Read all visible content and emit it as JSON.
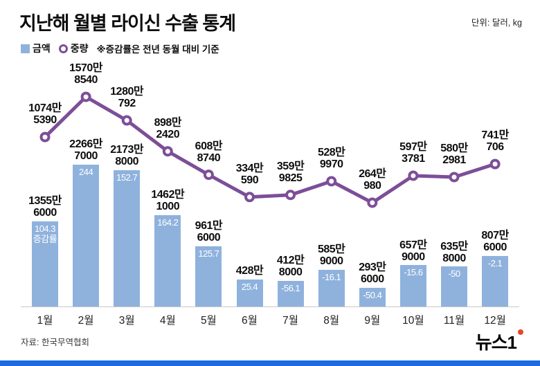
{
  "header": {
    "title": "지난해 월별 라이신 수출 통계",
    "unit_note": "단위: 달러, kg"
  },
  "legend": {
    "note": "※증감률은 전년 동월 대비 기준"
  },
  "footer": {
    "source": "자료: 한국무역협회",
    "logo": "뉴스1"
  },
  "colors": {
    "bar": "#8fb2dd",
    "line": "#7d4e98",
    "strip": "#1c6be2",
    "logo_dot": "#e8442e"
  },
  "chart_data": {
    "type": "combo",
    "title": "지난해 월별 라이신 수출 통계",
    "note": "※증감률은 전년 동월 대비 기준",
    "categories": [
      "1월",
      "2월",
      "3월",
      "4월",
      "5월",
      "6월",
      "7월",
      "8월",
      "9월",
      "10월",
      "11월",
      "12월"
    ],
    "legend_position": "top-left",
    "grid": false,
    "series": [
      {
        "name": "금액",
        "type": "bar",
        "values": [
          13556000,
          22667000,
          21738000,
          14621000,
          9616000,
          4280000,
          4128000,
          5859000,
          2936000,
          6579000,
          6358000,
          8076000
        ],
        "labels": [
          [
            "1355만",
            "6000"
          ],
          [
            "2266만",
            "7000"
          ],
          [
            "2173만",
            "8000"
          ],
          [
            "1462만",
            "1000"
          ],
          [
            "961만",
            "6000"
          ],
          [
            "428만"
          ],
          [
            "412만",
            "8000"
          ],
          [
            "585만",
            "9000"
          ],
          [
            "293만",
            "6000"
          ],
          [
            "657만",
            "9000"
          ],
          [
            "635만",
            "8000"
          ],
          [
            "807만",
            "6000"
          ]
        ],
        "growth_rates": [
          104.3,
          244,
          152.7,
          164.2,
          125.7,
          25.4,
          -56.1,
          -16.1,
          -50.4,
          -15.6,
          -50,
          -2.1
        ],
        "growth_labels": [
          [
            "104.3",
            "증감률"
          ],
          [
            "244"
          ],
          [
            "152.7"
          ],
          [
            "164.2"
          ],
          [
            "125.7"
          ],
          [
            "25.4"
          ],
          [
            "-56.1"
          ],
          [
            "-16.1"
          ],
          [
            "-50.4"
          ],
          [
            "-15.6"
          ],
          [
            "-50"
          ],
          [
            "-2.1"
          ]
        ]
      },
      {
        "name": "중량",
        "type": "line",
        "values": [
          10745390,
          15708540,
          12800792,
          8982420,
          6088740,
          3340590,
          3599825,
          5289970,
          2640980,
          5973781,
          5802981,
          7410706
        ],
        "labels": [
          [
            "1074만",
            "5390"
          ],
          [
            "1570만",
            "8540"
          ],
          [
            "1280만",
            "792"
          ],
          [
            "898만",
            "2420"
          ],
          [
            "608만",
            "8740"
          ],
          [
            "334만",
            "590"
          ],
          [
            "359만",
            "9825"
          ],
          [
            "528만",
            "9970"
          ],
          [
            "264만",
            "980"
          ],
          [
            "597만",
            "3781"
          ],
          [
            "580만",
            "2981"
          ],
          [
            "741만",
            "706"
          ]
        ]
      }
    ]
  }
}
